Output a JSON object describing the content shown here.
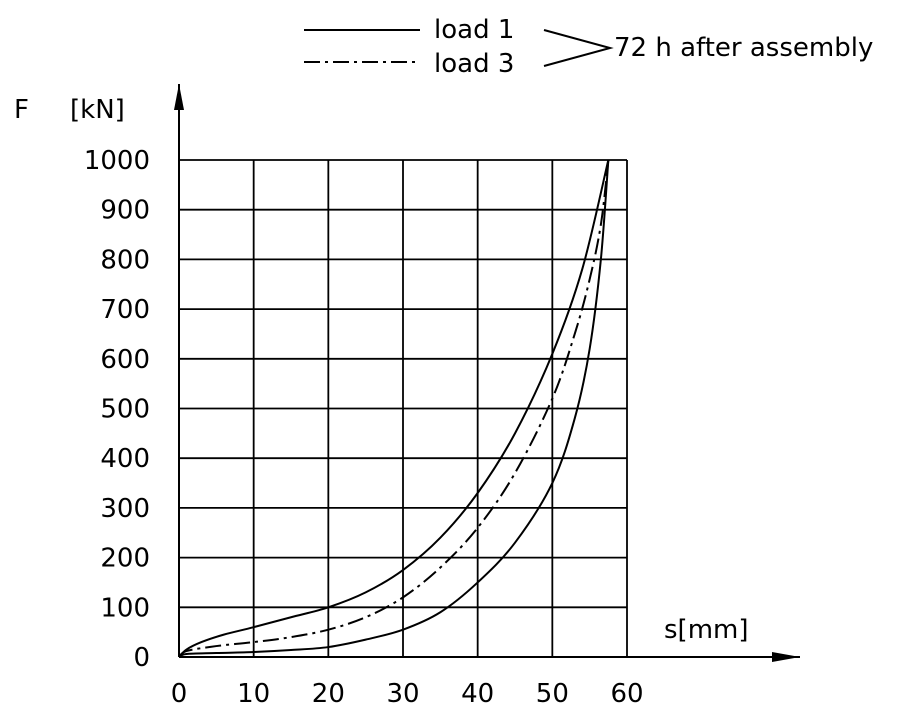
{
  "chart_data": {
    "type": "line",
    "title": "",
    "xlabel": "s[mm]",
    "ylabel_symbol": "F",
    "ylabel_unit": "[kN]",
    "xlim": [
      0,
      60
    ],
    "ylim": [
      0,
      1000
    ],
    "xticks": [
      0,
      10,
      20,
      30,
      40,
      50,
      60
    ],
    "yticks": [
      0,
      100,
      200,
      300,
      400,
      500,
      600,
      700,
      800,
      900,
      1000
    ],
    "grid": true,
    "legend": {
      "placement": "top",
      "entries": [
        "load 1",
        "load 3"
      ],
      "note": "72 h after assembly"
    },
    "series": [
      {
        "name": "load 1",
        "style": "solid",
        "branches": [
          {
            "x": [
              0,
              1,
              3,
              6,
              10,
              15,
              20,
              25,
              30,
              35,
              40,
              45,
              50,
              54,
              57.5
            ],
            "y": [
              0,
              15,
              30,
              45,
              60,
              80,
              100,
              130,
              175,
              240,
              330,
              450,
              610,
              780,
              1000
            ]
          },
          {
            "x": [
              0,
              1,
              5,
              10,
              15,
              20,
              25,
              30,
              35,
              40,
              45,
              50,
              53,
              55,
              56.5,
              57.5
            ],
            "y": [
              0,
              6,
              8,
              10,
              14,
              20,
              35,
              55,
              90,
              150,
              230,
              350,
              480,
              620,
              800,
              1000
            ]
          }
        ]
      },
      {
        "name": "load 3",
        "style": "dash-dot",
        "branches": [
          {
            "x": [
              0,
              1,
              5,
              10,
              15,
              20,
              25,
              30,
              35,
              40,
              45,
              50,
              53,
              55,
              56.5,
              57.5
            ],
            "y": [
              0,
              12,
              22,
              30,
              40,
              55,
              80,
              120,
              180,
              260,
              370,
              520,
              650,
              760,
              870,
              1000
            ]
          }
        ]
      }
    ]
  }
}
